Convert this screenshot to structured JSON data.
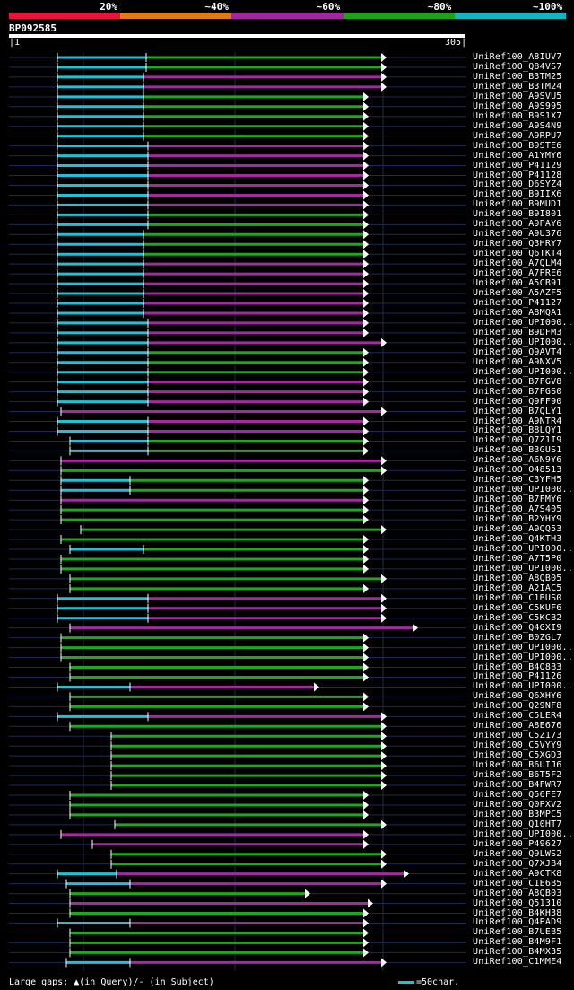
{
  "scale": {
    "labels": [
      "20%",
      "~40%",
      "~60%",
      "~80%",
      "~100%"
    ],
    "colors": [
      "#e3163b",
      "#e07b1a",
      "#a0289c",
      "#22a01c",
      "#19b2c0"
    ]
  },
  "query": {
    "name": "BP092585",
    "start": "1",
    "end": "305"
  },
  "colors": {
    "cyan": "#22c0d8",
    "green": "#1fa81f",
    "magenta": "#a32aa0",
    "arrow": "#ffffff",
    "guide": "#1c2a55"
  },
  "hits": [
    {
      "name": "UniRef100_A8IUV7",
      "c": "g",
      "s": 64,
      "e": 425,
      "cy": 163
    },
    {
      "name": "UniRef100_Q84VS7",
      "c": "g",
      "s": 64,
      "e": 425,
      "cy": 163
    },
    {
      "name": "UniRef100_B3TM25",
      "c": "m",
      "s": 64,
      "e": 425,
      "cy": 160
    },
    {
      "name": "UniRef100_B3TM24",
      "c": "m",
      "s": 64,
      "e": 425,
      "cy": 160
    },
    {
      "name": "UniRef100_A9SVU5",
      "c": "g",
      "s": 64,
      "e": 405,
      "cy": 160
    },
    {
      "name": "UniRef100_A9S995",
      "c": "g",
      "s": 64,
      "e": 405,
      "cy": 160
    },
    {
      "name": "UniRef100_B9S1X7",
      "c": "g",
      "s": 64,
      "e": 405,
      "cy": 160
    },
    {
      "name": "UniRef100_A9S4N9",
      "c": "g",
      "s": 64,
      "e": 405,
      "cy": 160
    },
    {
      "name": "UniRef100_A9RPU7",
      "c": "g",
      "s": 64,
      "e": 405,
      "cy": 160
    },
    {
      "name": "UniRef100_B9STE6",
      "c": "m",
      "s": 64,
      "e": 405,
      "cy": 165
    },
    {
      "name": "UniRef100_A1YMY6",
      "c": "m",
      "s": 64,
      "e": 405,
      "cy": 165
    },
    {
      "name": "UniRef100_P41129",
      "c": "m",
      "s": 64,
      "e": 405,
      "cy": 165
    },
    {
      "name": "UniRef100_P41128",
      "c": "m",
      "s": 64,
      "e": 405,
      "cy": 165
    },
    {
      "name": "UniRef100_D6SYZ4",
      "c": "m",
      "s": 64,
      "e": 405,
      "cy": 165
    },
    {
      "name": "UniRef100_B9IIX6",
      "c": "m",
      "s": 64,
      "e": 405,
      "cy": 165
    },
    {
      "name": "UniRef100_B9MUD1",
      "c": "m",
      "s": 64,
      "e": 405,
      "cy": 165
    },
    {
      "name": "UniRef100_B9I801",
      "c": "g",
      "s": 64,
      "e": 405,
      "cy": 165
    },
    {
      "name": "UniRef100_A9PAY6",
      "c": "g",
      "s": 64,
      "e": 405,
      "cy": 165
    },
    {
      "name": "UniRef100_A9U376",
      "c": "g",
      "s": 64,
      "e": 405,
      "cy": 160
    },
    {
      "name": "UniRef100_Q3HRY7",
      "c": "g",
      "s": 64,
      "e": 405,
      "cy": 160
    },
    {
      "name": "UniRef100_Q6TKT4",
      "c": "g",
      "s": 64,
      "e": 405,
      "cy": 160
    },
    {
      "name": "UniRef100_A7QLM4",
      "c": "m",
      "s": 64,
      "e": 405,
      "cy": 160
    },
    {
      "name": "UniRef100_A7PRE6",
      "c": "m",
      "s": 64,
      "e": 405,
      "cy": 160
    },
    {
      "name": "UniRef100_A5CB91",
      "c": "m",
      "s": 64,
      "e": 405,
      "cy": 160
    },
    {
      "name": "UniRef100_A5AZF5",
      "c": "m",
      "s": 64,
      "e": 405,
      "cy": 160
    },
    {
      "name": "UniRef100_P41127",
      "c": "m",
      "s": 64,
      "e": 405,
      "cy": 160
    },
    {
      "name": "UniRef100_A8MQA1",
      "c": "m",
      "s": 64,
      "e": 405,
      "cy": 160
    },
    {
      "name": "UniRef100_UPI000..",
      "c": "m",
      "s": 64,
      "e": 405,
      "cy": 165
    },
    {
      "name": "UniRef100_B9DFM3",
      "c": "m",
      "s": 64,
      "e": 405,
      "cy": 165
    },
    {
      "name": "UniRef100_UPI000..",
      "c": "m",
      "s": 64,
      "e": 425,
      "cy": 165
    },
    {
      "name": "UniRef100_Q9AVT4",
      "c": "g",
      "s": 64,
      "e": 405,
      "cy": 165
    },
    {
      "name": "UniRef100_A9NXV5",
      "c": "g",
      "s": 64,
      "e": 405,
      "cy": 165
    },
    {
      "name": "UniRef100_UPI000..",
      "c": "g",
      "s": 64,
      "e": 405,
      "cy": 165
    },
    {
      "name": "UniRef100_B7FGV8",
      "c": "m",
      "s": 64,
      "e": 405,
      "cy": 165
    },
    {
      "name": "UniRef100_B7FGS0",
      "c": "m",
      "s": 64,
      "e": 405,
      "cy": 165
    },
    {
      "name": "UniRef100_Q9FF90",
      "c": "m",
      "s": 64,
      "e": 405,
      "cy": 165
    },
    {
      "name": "UniRef100_B7QLY1",
      "c": "m",
      "s": 68,
      "e": 425,
      "cy": 0
    },
    {
      "name": "UniRef100_A9NTR4",
      "c": "m",
      "s": 64,
      "e": 405,
      "cy": 165
    },
    {
      "name": "UniRef100_B8LQY1",
      "c": "m",
      "s": 64,
      "e": 405,
      "cy": 165
    },
    {
      "name": "UniRef100_Q7Z1I9",
      "c": "g",
      "s": 78,
      "e": 405,
      "cy": 165
    },
    {
      "name": "UniRef100_B3GUS1",
      "c": "g",
      "s": 78,
      "e": 405,
      "cy": 165
    },
    {
      "name": "UniRef100_A6N9Y6",
      "c": "m",
      "s": 68,
      "e": 425,
      "cy": 0
    },
    {
      "name": "UniRef100_O48513",
      "c": "g",
      "s": 68,
      "e": 425,
      "cy": 0
    },
    {
      "name": "UniRef100_C3YFH5",
      "c": "g",
      "s": 68,
      "e": 405,
      "cy": 145
    },
    {
      "name": "UniRef100_UPI000..",
      "c": "g",
      "s": 68,
      "e": 405,
      "cy": 145
    },
    {
      "name": "UniRef100_B7FMY6",
      "c": "m",
      "s": 68,
      "e": 405,
      "cy": 0
    },
    {
      "name": "UniRef100_A7S405",
      "c": "g",
      "s": 68,
      "e": 405,
      "cy": 0
    },
    {
      "name": "UniRef100_B2YHY9",
      "c": "g",
      "s": 68,
      "e": 405,
      "cy": 0
    },
    {
      "name": "UniRef100_A9QQ53",
      "c": "g",
      "s": 90,
      "e": 425,
      "cy": 0
    },
    {
      "name": "UniRef100_Q4KTH3",
      "c": "g",
      "s": 68,
      "e": 405,
      "cy": 0
    },
    {
      "name": "UniRef100_UPI000..",
      "c": "g",
      "s": 78,
      "e": 405,
      "cy": 160
    },
    {
      "name": "UniRef100_A7T5P0",
      "c": "g",
      "s": 68,
      "e": 405,
      "cy": 0
    },
    {
      "name": "UniRef100_UPI000..",
      "c": "g",
      "s": 68,
      "e": 405,
      "cy": 0
    },
    {
      "name": "UniRef100_A8QB05",
      "c": "g",
      "s": 78,
      "e": 425,
      "cy": 0
    },
    {
      "name": "UniRef100_A2IAC5",
      "c": "g",
      "s": 78,
      "e": 405,
      "cy": 0
    },
    {
      "name": "UniRef100_C1BUS0",
      "c": "m",
      "s": 64,
      "e": 425,
      "cy": 165
    },
    {
      "name": "UniRef100_C5KUF6",
      "c": "m",
      "s": 64,
      "e": 425,
      "cy": 165
    },
    {
      "name": "UniRef100_C5KCB2",
      "c": "m",
      "s": 64,
      "e": 425,
      "cy": 165
    },
    {
      "name": "UniRef100_Q4GXI9",
      "c": "m",
      "s": 78,
      "e": 460,
      "cy": 0
    },
    {
      "name": "UniRef100_B0ZGL7",
      "c": "g",
      "s": 68,
      "e": 405,
      "cy": 0
    },
    {
      "name": "UniRef100_UPI000..",
      "c": "g",
      "s": 68,
      "e": 405,
      "cy": 0
    },
    {
      "name": "UniRef100_UPI000..",
      "c": "g",
      "s": 68,
      "e": 405,
      "cy": 0
    },
    {
      "name": "UniRef100_B4Q8B3",
      "c": "g",
      "s": 78,
      "e": 405,
      "cy": 0
    },
    {
      "name": "UniRef100_P41126",
      "c": "g",
      "s": 78,
      "e": 405,
      "cy": 0
    },
    {
      "name": "UniRef100_UPI000..",
      "c": "m",
      "s": 64,
      "e": 350,
      "cy": 145
    },
    {
      "name": "UniRef100_Q6XHY6",
      "c": "g",
      "s": 78,
      "e": 405,
      "cy": 0
    },
    {
      "name": "UniRef100_Q29NF8",
      "c": "g",
      "s": 78,
      "e": 405,
      "cy": 0
    },
    {
      "name": "UniRef100_C5LER4",
      "c": "m",
      "s": 64,
      "e": 425,
      "cy": 165
    },
    {
      "name": "UniRef100_A8E676",
      "c": "g",
      "s": 78,
      "e": 425,
      "cy": 0
    },
    {
      "name": "UniRef100_C5Z173",
      "c": "g",
      "s": 124,
      "e": 425,
      "cy": 0
    },
    {
      "name": "UniRef100_C5VYY9",
      "c": "g",
      "s": 124,
      "e": 425,
      "cy": 0
    },
    {
      "name": "UniRef100_C5XGD3",
      "c": "g",
      "s": 124,
      "e": 425,
      "cy": 0
    },
    {
      "name": "UniRef100_B6UIJ6",
      "c": "g",
      "s": 124,
      "e": 425,
      "cy": 0
    },
    {
      "name": "UniRef100_B6T5F2",
      "c": "g",
      "s": 124,
      "e": 425,
      "cy": 0
    },
    {
      "name": "UniRef100_B4FWR7",
      "c": "g",
      "s": 124,
      "e": 425,
      "cy": 0
    },
    {
      "name": "UniRef100_Q56FE7",
      "c": "g",
      "s": 78,
      "e": 405,
      "cy": 0
    },
    {
      "name": "UniRef100_Q0PXV2",
      "c": "g",
      "s": 78,
      "e": 405,
      "cy": 0
    },
    {
      "name": "UniRef100_B3MPC5",
      "c": "g",
      "s": 78,
      "e": 405,
      "cy": 0
    },
    {
      "name": "UniRef100_Q10HT7",
      "c": "g",
      "s": 128,
      "e": 425,
      "cy": 0
    },
    {
      "name": "UniRef100_UPI000..",
      "c": "m",
      "s": 68,
      "e": 405,
      "cy": 0
    },
    {
      "name": "UniRef100_P49627",
      "c": "m",
      "s": 103,
      "e": 405,
      "cy": 0
    },
    {
      "name": "UniRef100_Q9LWS2",
      "c": "g",
      "s": 124,
      "e": 425,
      "cy": 0
    },
    {
      "name": "UniRef100_Q7XJB4",
      "c": "g",
      "s": 124,
      "e": 425,
      "cy": 0
    },
    {
      "name": "UniRef100_A9CTK8",
      "c": "m",
      "s": 64,
      "e": 450,
      "cy": 130
    },
    {
      "name": "UniRef100_C1E6B5",
      "c": "m",
      "s": 74,
      "e": 425,
      "cy": 145
    },
    {
      "name": "UniRef100_A8QB03",
      "c": "g",
      "s": 78,
      "e": 340,
      "cy": 0
    },
    {
      "name": "UniRef100_Q51310",
      "c": "m",
      "s": 78,
      "e": 410,
      "cy": 0
    },
    {
      "name": "UniRef100_B4KH38",
      "c": "g",
      "s": 78,
      "e": 405,
      "cy": 0
    },
    {
      "name": "UniRef100_Q4PAD9",
      "c": "m",
      "s": 64,
      "e": 405,
      "cy": 145
    },
    {
      "name": "UniRef100_B7UEB5",
      "c": "g",
      "s": 78,
      "e": 405,
      "cy": 0
    },
    {
      "name": "UniRef100_B4M9F1",
      "c": "g",
      "s": 78,
      "e": 405,
      "cy": 0
    },
    {
      "name": "UniRef100_B4MX35",
      "c": "g",
      "s": 78,
      "e": 405,
      "cy": 0
    },
    {
      "name": "UniRef100_C1MME4",
      "c": "m",
      "s": 74,
      "e": 425,
      "cy": 145
    }
  ],
  "footer": {
    "text": "Large gaps: ▲(in Query)/- (in Subject)"
  },
  "legend": {
    "text": "=50char."
  }
}
